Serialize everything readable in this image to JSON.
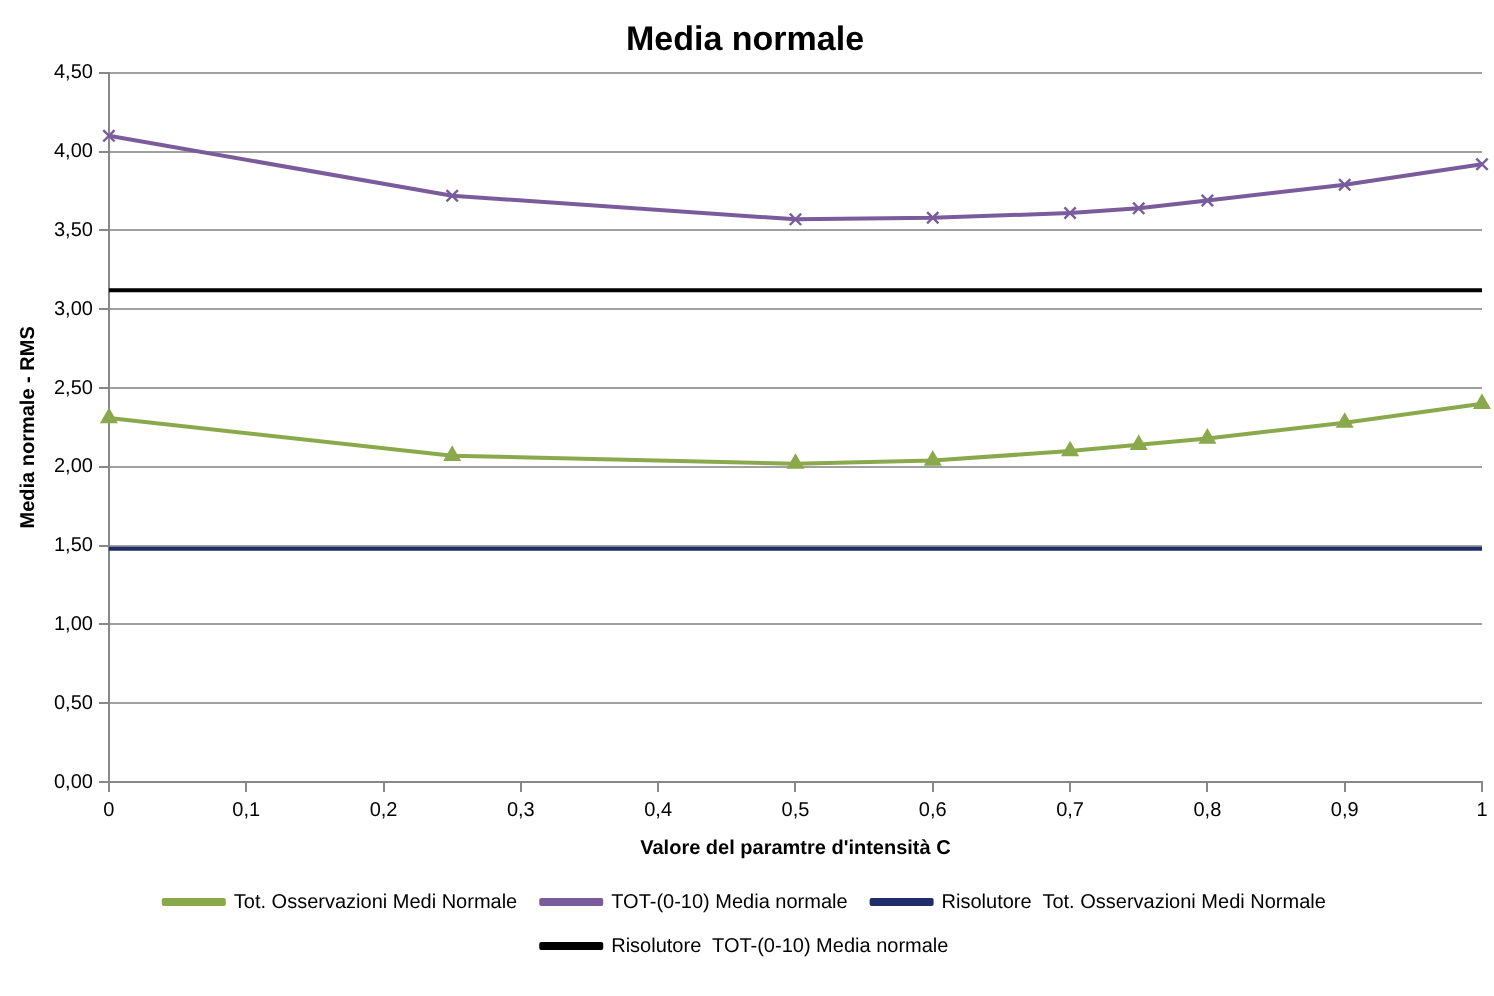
{
  "chart_data": {
    "type": "line",
    "title": "Media normale",
    "xlabel": "Valore del paramtre d'intensità C",
    "ylabel": "Media normale - RMS",
    "x": [
      0,
      0.25,
      0.5,
      0.6,
      0.7,
      0.75,
      0.8,
      0.9,
      1
    ],
    "series": [
      {
        "name": "Tot. Osservazioni Medi Normale",
        "color": "#8aa94c",
        "marker": "triangle",
        "values": [
          2.31,
          2.07,
          2.02,
          2.04,
          2.1,
          2.14,
          2.18,
          2.28,
          2.4
        ]
      },
      {
        "name": "TOT-(0-10) Media normale",
        "color": "#7a5c9c",
        "marker": "cross",
        "values": [
          4.1,
          3.72,
          3.57,
          3.58,
          3.61,
          3.64,
          3.69,
          3.79,
          3.92
        ]
      },
      {
        "name": "Risolutore  Tot. Osservazioni Medi Normale",
        "color": "#1f2d6b",
        "marker": "none",
        "values": [
          1.48,
          1.48,
          1.48,
          1.48,
          1.48,
          1.48,
          1.48,
          1.48,
          1.48
        ]
      },
      {
        "name": "Risolutore  TOT-(0-10) Media normale",
        "color": "#000000",
        "marker": "none",
        "values": [
          3.12,
          3.12,
          3.12,
          3.12,
          3.12,
          3.12,
          3.12,
          3.12,
          3.12
        ]
      }
    ],
    "xlim": [
      0,
      1
    ],
    "xticks": [
      {
        "value": 0,
        "label": "0"
      },
      {
        "value": 0.1,
        "label": "0,1"
      },
      {
        "value": 0.2,
        "label": "0,2"
      },
      {
        "value": 0.3,
        "label": "0,3"
      },
      {
        "value": 0.4,
        "label": "0,4"
      },
      {
        "value": 0.5,
        "label": "0,5"
      },
      {
        "value": 0.6,
        "label": "0,6"
      },
      {
        "value": 0.7,
        "label": "0,7"
      },
      {
        "value": 0.8,
        "label": "0,8"
      },
      {
        "value": 0.9,
        "label": "0,9"
      },
      {
        "value": 1,
        "label": "1"
      }
    ],
    "ylim": [
      0,
      4.5
    ],
    "yticks": [
      {
        "value": 0,
        "label": "0,00"
      },
      {
        "value": 0.5,
        "label": "0,50"
      },
      {
        "value": 1,
        "label": "1,00"
      },
      {
        "value": 1.5,
        "label": "1,50"
      },
      {
        "value": 2,
        "label": "2,00"
      },
      {
        "value": 2.5,
        "label": "2,50"
      },
      {
        "value": 3,
        "label": "3,00"
      },
      {
        "value": 3.5,
        "label": "3,50"
      },
      {
        "value": 4,
        "label": "4,00"
      },
      {
        "value": 4.5,
        "label": "4,50"
      }
    ],
    "grid": "y",
    "legend": "bottom",
    "line_style": "solid"
  }
}
